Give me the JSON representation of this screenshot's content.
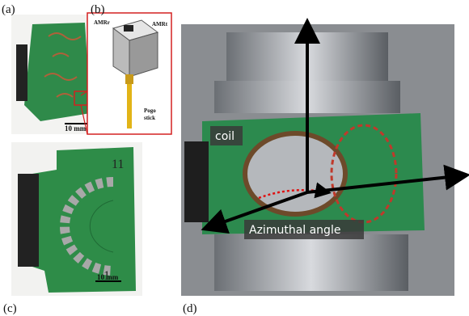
{
  "panels": {
    "a": {
      "label": "(a)",
      "scale_bar": "10 mm"
    },
    "b": {
      "label": "(b)",
      "sensor_left": "AMRr",
      "sensor_right": "AMRt",
      "pogo_line1": "Pogo",
      "pogo_line2": "stick"
    },
    "c": {
      "label": "(c)",
      "number_top": "11",
      "number_bottom": "1",
      "scale_bar": "10 mm"
    },
    "d": {
      "label": "(d)",
      "coil": "coil",
      "angle": "Azimuthal angle"
    }
  }
}
